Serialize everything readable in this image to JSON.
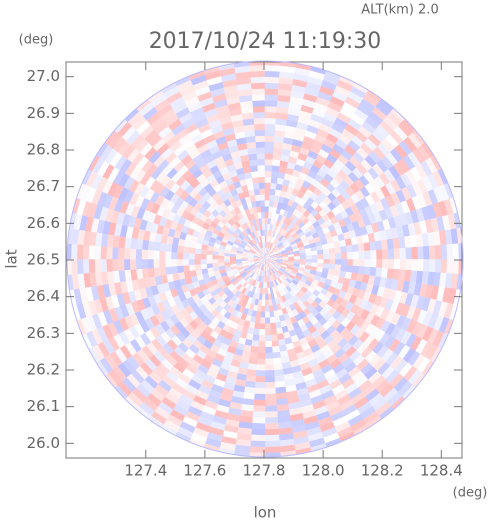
{
  "chart_data": {
    "type": "radar-ppi",
    "title": "2017/10/24 11:19:30",
    "annotation": "ALT(km) 2.0",
    "x_label": "lon",
    "y_label": "lat",
    "x_unit": "(deg)",
    "y_unit": "(deg)",
    "xlim": [
      127.13,
      128.47
    ],
    "ylim": [
      25.96,
      27.04
    ],
    "xticks": [
      127.4,
      127.6,
      127.8,
      {
        "value": 128.0,
        "label": "128.0"
      },
      128.2,
      128.4
    ],
    "yticks": [
      {
        "value": 26.0,
        "label": "26.0"
      },
      26.1,
      26.2,
      26.3,
      26.4,
      26.5,
      26.6,
      26.7,
      26.8,
      26.9,
      {
        "value": 27.0,
        "label": "27.0"
      }
    ]
  }
}
